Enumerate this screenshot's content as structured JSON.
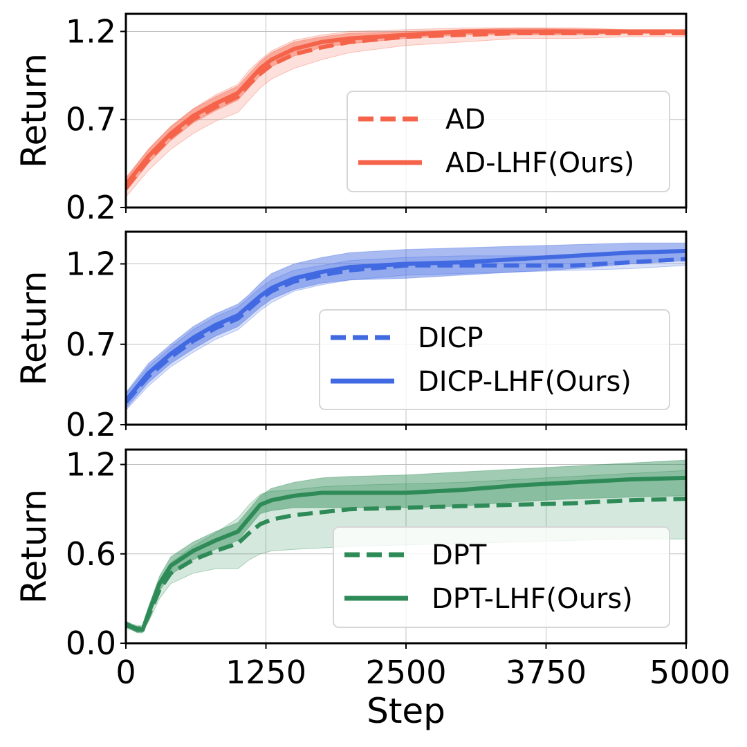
{
  "chart_data": {
    "type": "line",
    "xlabel": "Step",
    "xlim": [
      0,
      5000
    ],
    "xticks": [
      0,
      1250,
      2500,
      3750,
      5000
    ],
    "xtick_labels": [
      "0",
      "1250",
      "2500",
      "3750",
      "5000"
    ],
    "grid": true,
    "panels": [
      {
        "ylabel": "Return",
        "ylim": [
          0.2,
          1.3
        ],
        "yticks": [
          0.2,
          0.7,
          1.2
        ],
        "ytick_labels": [
          "0.2",
          "0.7",
          "1.2"
        ],
        "color": "#f4634a",
        "legend_position": "center-right",
        "x": [
          0,
          200,
          400,
          600,
          800,
          1000,
          1100,
          1200,
          1300,
          1500,
          1750,
          2000,
          2500,
          3000,
          3500,
          4000,
          4500,
          5000
        ],
        "series": [
          {
            "name": "AD",
            "style": "dashed",
            "values": [
              0.31,
              0.47,
              0.6,
              0.7,
              0.77,
              0.83,
              0.9,
              0.96,
              1.01,
              1.07,
              1.11,
              1.14,
              1.17,
              1.18,
              1.19,
              1.19,
              1.19,
              1.19
            ],
            "lower": [
              0.26,
              0.41,
              0.53,
              0.62,
              0.69,
              0.74,
              0.81,
              0.88,
              0.93,
              0.99,
              1.04,
              1.08,
              1.12,
              1.14,
              1.16,
              1.16,
              1.17,
              1.17
            ],
            "upper": [
              0.36,
              0.53,
              0.66,
              0.76,
              0.84,
              0.9,
              0.98,
              1.04,
              1.09,
              1.15,
              1.18,
              1.2,
              1.21,
              1.22,
              1.22,
              1.21,
              1.21,
              1.21
            ]
          },
          {
            "name": "AD-LHF(Ours)",
            "style": "solid",
            "values": [
              0.33,
              0.49,
              0.62,
              0.72,
              0.79,
              0.85,
              0.92,
              0.99,
              1.04,
              1.1,
              1.14,
              1.16,
              1.18,
              1.2,
              1.2,
              1.2,
              1.2,
              1.2
            ],
            "lower": [
              0.29,
              0.45,
              0.58,
              0.68,
              0.75,
              0.81,
              0.88,
              0.95,
              1.0,
              1.06,
              1.11,
              1.13,
              1.16,
              1.18,
              1.18,
              1.18,
              1.19,
              1.19
            ],
            "upper": [
              0.37,
              0.53,
              0.66,
              0.76,
              0.83,
              0.89,
              0.96,
              1.03,
              1.08,
              1.14,
              1.17,
              1.19,
              1.2,
              1.21,
              1.22,
              1.22,
              1.21,
              1.21
            ]
          }
        ]
      },
      {
        "ylabel": "Return",
        "ylim": [
          0.2,
          1.4
        ],
        "yticks": [
          0.2,
          0.7,
          1.2
        ],
        "ytick_labels": [
          "0.2",
          "0.7",
          "1.2"
        ],
        "color": "#4169e1",
        "legend_position": "center-right",
        "x": [
          0,
          200,
          400,
          600,
          800,
          1000,
          1100,
          1200,
          1300,
          1500,
          1750,
          2000,
          2500,
          3000,
          3500,
          4000,
          4500,
          5000
        ],
        "series": [
          {
            "name": "DICP",
            "style": "dashed",
            "values": [
              0.34,
              0.5,
              0.62,
              0.72,
              0.8,
              0.86,
              0.92,
              0.98,
              1.03,
              1.09,
              1.13,
              1.16,
              1.19,
              1.19,
              1.19,
              1.19,
              1.21,
              1.23
            ],
            "lower": [
              0.29,
              0.44,
              0.56,
              0.65,
              0.73,
              0.79,
              0.85,
              0.91,
              0.96,
              1.03,
              1.07,
              1.1,
              1.13,
              1.14,
              1.15,
              1.16,
              1.17,
              1.19
            ],
            "upper": [
              0.39,
              0.56,
              0.68,
              0.79,
              0.87,
              0.93,
              0.99,
              1.05,
              1.1,
              1.16,
              1.19,
              1.22,
              1.24,
              1.25,
              1.25,
              1.25,
              1.26,
              1.28
            ]
          },
          {
            "name": "DICP-LHF(Ours)",
            "style": "solid",
            "values": [
              0.35,
              0.52,
              0.64,
              0.74,
              0.82,
              0.88,
              0.94,
              1.0,
              1.05,
              1.11,
              1.15,
              1.18,
              1.2,
              1.21,
              1.23,
              1.25,
              1.27,
              1.28
            ],
            "lower": [
              0.3,
              0.46,
              0.58,
              0.67,
              0.75,
              0.81,
              0.87,
              0.93,
              0.98,
              1.04,
              1.08,
              1.1,
              1.11,
              1.13,
              1.15,
              1.17,
              1.2,
              1.22
            ],
            "upper": [
              0.4,
              0.58,
              0.7,
              0.81,
              0.89,
              0.95,
              1.01,
              1.08,
              1.14,
              1.2,
              1.24,
              1.27,
              1.29,
              1.3,
              1.31,
              1.32,
              1.33,
              1.33
            ]
          }
        ]
      },
      {
        "ylabel": "Return",
        "ylim": [
          0.0,
          1.3
        ],
        "yticks": [
          0.0,
          0.6,
          1.2
        ],
        "ytick_labels": [
          "0.0",
          "0.6",
          "1.2"
        ],
        "color": "#2e8b57",
        "legend_position": "lower-right",
        "x": [
          0,
          100,
          150,
          200,
          300,
          400,
          600,
          800,
          1000,
          1100,
          1200,
          1300,
          1500,
          1750,
          2000,
          2500,
          3000,
          3500,
          4000,
          4500,
          5000
        ],
        "series": [
          {
            "name": "DPT",
            "style": "dashed",
            "values": [
              0.12,
              0.1,
              0.1,
              0.18,
              0.36,
              0.47,
              0.56,
              0.62,
              0.67,
              0.74,
              0.8,
              0.83,
              0.86,
              0.88,
              0.9,
              0.91,
              0.92,
              0.93,
              0.94,
              0.96,
              0.97
            ],
            "lower": [
              0.1,
              0.08,
              0.08,
              0.14,
              0.3,
              0.4,
              0.47,
              0.5,
              0.5,
              0.56,
              0.6,
              0.62,
              0.63,
              0.64,
              0.65,
              0.66,
              0.67,
              0.68,
              0.69,
              0.7,
              0.7
            ],
            "upper": [
              0.14,
              0.12,
              0.12,
              0.22,
              0.42,
              0.54,
              0.65,
              0.74,
              0.84,
              0.93,
              1.0,
              1.02,
              1.03,
              1.05,
              1.06,
              1.07,
              1.08,
              1.1,
              1.12,
              1.14,
              1.16
            ]
          },
          {
            "name": "DPT-LHF(Ours)",
            "style": "solid",
            "values": [
              0.13,
              0.09,
              0.09,
              0.2,
              0.4,
              0.52,
              0.62,
              0.69,
              0.75,
              0.84,
              0.93,
              0.96,
              0.99,
              1.01,
              1.01,
              1.01,
              1.03,
              1.06,
              1.08,
              1.1,
              1.11
            ],
            "lower": [
              0.11,
              0.07,
              0.07,
              0.16,
              0.35,
              0.46,
              0.56,
              0.63,
              0.69,
              0.78,
              0.87,
              0.89,
              0.91,
              0.91,
              0.91,
              0.91,
              0.92,
              0.95,
              0.97,
              0.98,
              0.99
            ],
            "upper": [
              0.15,
              0.11,
              0.11,
              0.24,
              0.45,
              0.58,
              0.68,
              0.75,
              0.81,
              0.9,
              0.99,
              1.04,
              1.08,
              1.11,
              1.12,
              1.13,
              1.15,
              1.17,
              1.19,
              1.21,
              1.23
            ]
          }
        ]
      }
    ]
  }
}
